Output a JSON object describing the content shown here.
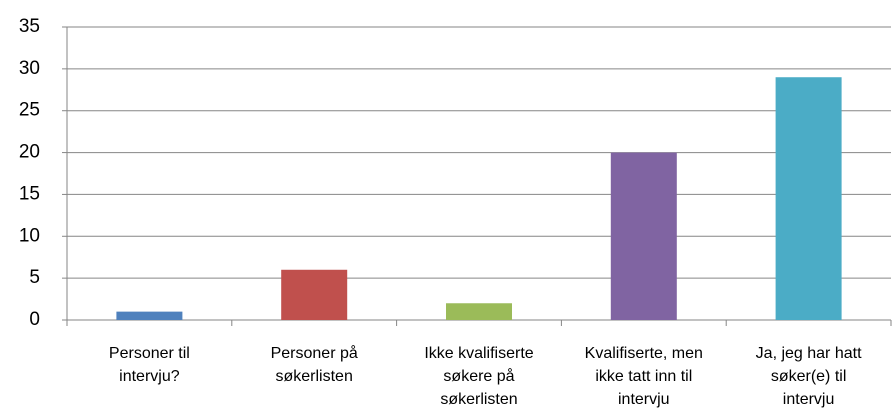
{
  "chart_data": {
    "type": "bar",
    "categories": [
      "Personer  til\nintervju?",
      "Personer på\nsøkerlisten",
      "Ikke kvalifiserte\nsøkere på\nsøkerlisten",
      "Kvalifiserte, men\nikke tatt inn til\nintervju",
      "Ja, jeg har hatt\nsøker(e) til\nintervju"
    ],
    "values": [
      1,
      6,
      2,
      20,
      29
    ],
    "colors": [
      "#4f81bd",
      "#c0504d",
      "#9bbb59",
      "#8064a2",
      "#4bacc6"
    ],
    "ylim": [
      0,
      35
    ],
    "yticks": [
      0,
      5,
      10,
      15,
      20,
      25,
      30,
      35
    ],
    "grid": true
  }
}
